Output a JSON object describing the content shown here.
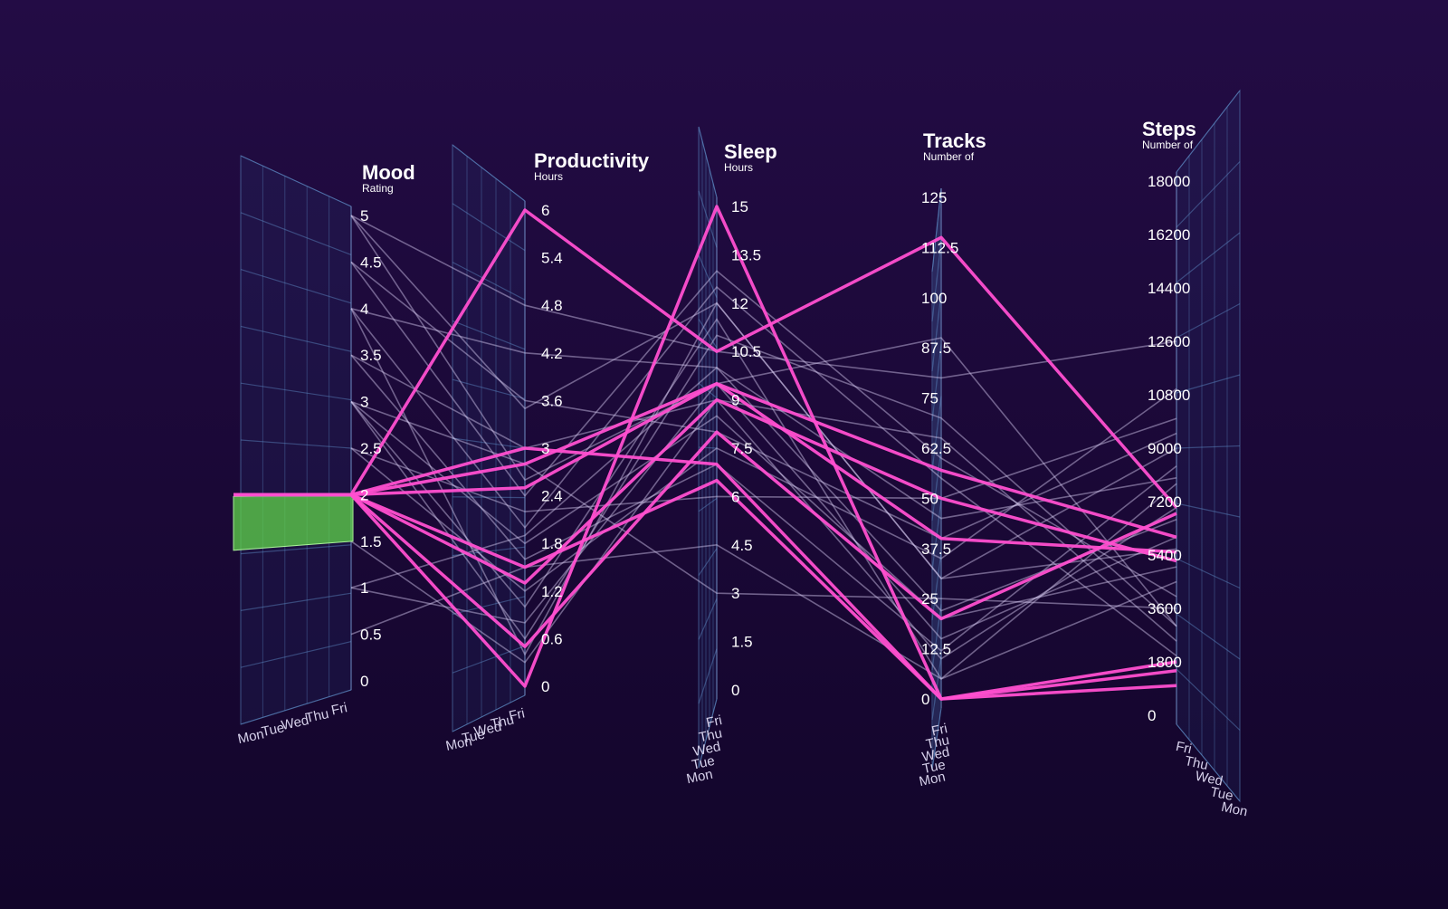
{
  "chart_data": {
    "type": "parallel-coordinates-3d",
    "axes": [
      {
        "title": "Mood",
        "subtitle": "Rating",
        "ticks": [
          "5",
          "4.5",
          "4",
          "3.5",
          "3",
          "2.5",
          "2",
          "1.5",
          "1",
          "0.5",
          "0"
        ],
        "range": [
          0,
          5
        ]
      },
      {
        "title": "Productivity",
        "subtitle": "Hours",
        "ticks": [
          "6",
          "5.4",
          "4.8",
          "4.2",
          "3.6",
          "3",
          "2.4",
          "1.8",
          "1.2",
          "0.6",
          "0"
        ],
        "range": [
          0,
          6
        ]
      },
      {
        "title": "Sleep",
        "subtitle": "Hours",
        "ticks": [
          "15",
          "13.5",
          "12",
          "10.5",
          "9",
          "7.5",
          "6",
          "4.5",
          "3",
          "1.5",
          "0"
        ],
        "range": [
          0,
          15
        ]
      },
      {
        "title": "Tracks",
        "subtitle": "Number of",
        "ticks": [
          "125",
          "112.5",
          "100",
          "87.5",
          "75",
          "62.5",
          "50",
          "37.5",
          "25",
          "12.5",
          "0"
        ],
        "range": [
          0,
          125
        ]
      },
      {
        "title": "Steps",
        "subtitle": "Number of",
        "ticks": [
          "18000",
          "16200",
          "14400",
          "12600",
          "10800",
          "9000",
          "7200",
          "5400",
          "3600",
          "1800",
          "0"
        ],
        "range": [
          0,
          18000
        ]
      }
    ],
    "days": [
      "Mon",
      "Tue",
      "Wed",
      "Thu",
      "Fri"
    ],
    "days_mirrored": [
      "Fri",
      "Thu",
      "Wed",
      "Tue",
      "Mon"
    ],
    "brush": {
      "axis": "Mood",
      "range": [
        1.5,
        2
      ]
    },
    "highlighted_series": [
      {
        "day": "Mon",
        "values": [
          2,
          6,
          10.5,
          115,
          7000
        ]
      },
      {
        "day": "Mon",
        "values": [
          2,
          0,
          15,
          0,
          1800
        ]
      },
      {
        "day": "Tue",
        "values": [
          2,
          2.8,
          9.5,
          57,
          6000
        ]
      },
      {
        "day": "Tue",
        "values": [
          2,
          1.3,
          9,
          50,
          5200
        ]
      },
      {
        "day": "Wed",
        "values": [
          2,
          2.5,
          9.5,
          40,
          5500
        ]
      },
      {
        "day": "Wed",
        "values": [
          2,
          0.5,
          8,
          20,
          6800
        ]
      },
      {
        "day": "Thu",
        "values": [
          2,
          3,
          7,
          0,
          1500
        ]
      },
      {
        "day": "Fri",
        "values": [
          2,
          1.5,
          6.5,
          0,
          1000
        ]
      }
    ],
    "context_series": [
      {
        "values": [
          5,
          3.5,
          12,
          30,
          9000
        ]
      },
      {
        "values": [
          4.5,
          2.4,
          13,
          60,
          4000
        ]
      },
      {
        "values": [
          4,
          4.2,
          10,
          45,
          8000
        ]
      },
      {
        "values": [
          3,
          1.8,
          8.5,
          20,
          5000
        ]
      },
      {
        "values": [
          3,
          0.6,
          11,
          70,
          3000
        ]
      },
      {
        "values": [
          3.5,
          3.0,
          9,
          10,
          7000
        ]
      },
      {
        "values": [
          2.5,
          1.2,
          7.5,
          35,
          11000
        ]
      },
      {
        "values": [
          4,
          2.0,
          12.5,
          55,
          2000
        ]
      },
      {
        "values": [
          1,
          0.8,
          9.5,
          15,
          6000
        ]
      },
      {
        "values": [
          0.5,
          1.5,
          4.5,
          5,
          4500
        ]
      },
      {
        "values": [
          5,
          4.8,
          10.5,
          80,
          12600
        ]
      },
      {
        "values": [
          3,
          2.8,
          3,
          25,
          3600
        ]
      },
      {
        "values": [
          4.5,
          3.6,
          8,
          40,
          9500
        ]
      },
      {
        "values": [
          1.5,
          0.3,
          9,
          65,
          2500
        ]
      },
      {
        "values": [
          3,
          1.0,
          11.5,
          5,
          7800
        ]
      },
      {
        "values": [
          2.5,
          2.2,
          6,
          50,
          10000
        ]
      },
      {
        "values": [
          4,
          0.4,
          12,
          30,
          5600
        ]
      },
      {
        "values": [
          3.5,
          1.6,
          7,
          12,
          8400
        ]
      },
      {
        "values": [
          5,
          2.6,
          9.5,
          90,
          3000
        ]
      },
      {
        "values": [
          1,
          1.9,
          10,
          22,
          6600
        ]
      }
    ],
    "colors": {
      "highlight": "#ff4fd0",
      "context": "#d9cff5",
      "brush": "#5fd44a",
      "grid": "#5f8fc8"
    },
    "grid": true
  }
}
